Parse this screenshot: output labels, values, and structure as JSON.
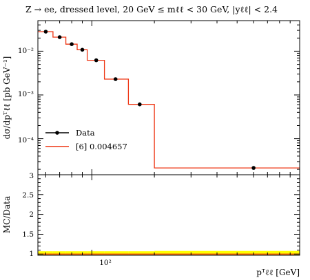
{
  "chart_data": [
    {
      "type": "line",
      "panel": "main",
      "title": "Z → ee, dressed level, 20 GeV ≤ mℓℓ < 30 GeV, |yℓℓ| < 2.4",
      "xlabel": "",
      "ylabel": "dσ/dpᵀℓℓ [pb GeV⁻¹]",
      "xscale": "log",
      "yscale": "log",
      "xlim": [
        55,
        1000
      ],
      "ylim": [
        1.5e-05,
        0.05
      ],
      "y_tick_labels": [
        "10⁻⁴",
        "10⁻³",
        "10⁻²"
      ],
      "x_tick_labels": [
        "10²"
      ],
      "legend_position": "lower-left",
      "series": [
        {
          "name": "Data",
          "style": "points",
          "color": "#000000",
          "x": [
            60,
            70,
            80,
            90,
            105,
            130,
            170,
            600
          ],
          "y": [
            0.028,
            0.021,
            0.0145,
            0.0108,
            0.0062,
            0.0023,
            0.00061,
            2.15e-05
          ]
        },
        {
          "name": "[6] 0.004657",
          "style": "step",
          "color": "#ee3311",
          "edges": [
            55,
            65,
            75,
            85,
            95,
            115,
            150,
            200,
            1000
          ],
          "values": [
            0.028,
            0.021,
            0.0145,
            0.0108,
            0.0062,
            0.0023,
            0.00061,
            2.15e-05
          ]
        }
      ]
    },
    {
      "type": "line",
      "panel": "ratio",
      "xlabel": "pᵀℓℓ [GeV]",
      "ylabel": "MC/Data",
      "xscale": "log",
      "xlim": [
        55,
        1000
      ],
      "ylim": [
        0.97,
        3.0
      ],
      "y_tick_labels": [
        "1",
        "1.5",
        "2",
        "2.5",
        "3"
      ],
      "x_tick_labels": [
        "10²"
      ],
      "band": {
        "color": "#ffff00",
        "edges": [
          55,
          65,
          75,
          85,
          95,
          115,
          150,
          200,
          1000
        ],
        "low": [
          0.97,
          0.97,
          0.97,
          0.97,
          0.97,
          0.97,
          0.97,
          0.97
        ],
        "high": [
          1.07,
          1.07,
          1.07,
          1.07,
          1.07,
          1.07,
          1.07,
          1.08
        ]
      },
      "series": [
        {
          "name": "[6] 0.004657",
          "style": "step",
          "color": "#ee3311",
          "edges": [
            55,
            65,
            75,
            85,
            95,
            115,
            150,
            200,
            1000
          ],
          "values": [
            1,
            1,
            1,
            1,
            1,
            1,
            1,
            1
          ]
        }
      ]
    }
  ]
}
